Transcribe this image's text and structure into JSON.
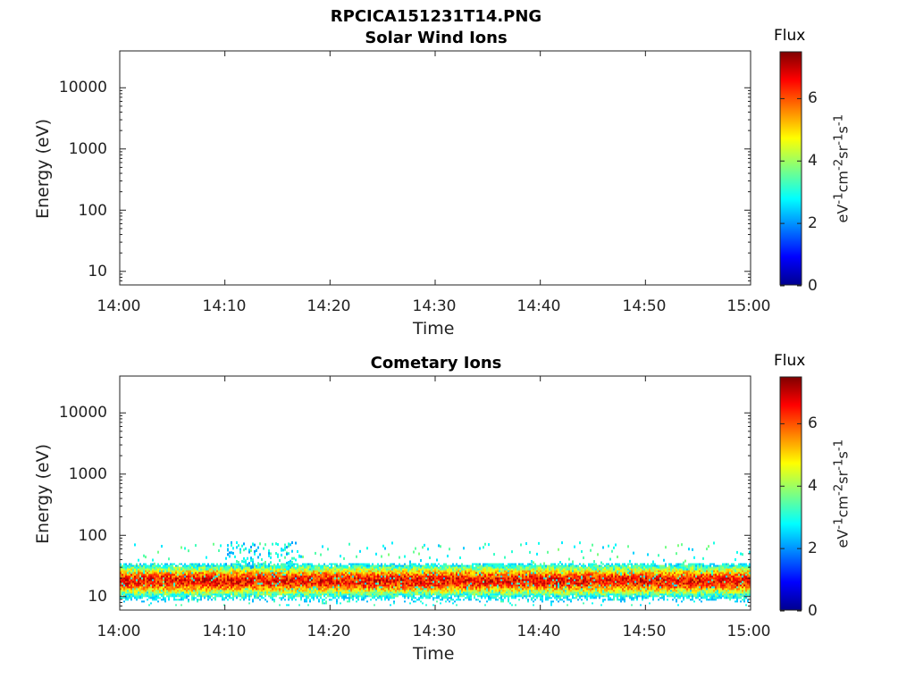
{
  "figure": {
    "title": "RPCICA151231T14.PNG"
  },
  "chart_data": [
    {
      "type": "heatmap",
      "title": "Solar Wind Ions",
      "xlabel": "Time",
      "ylabel": "Energy (eV)",
      "x_ticks": [
        "14:00",
        "14:10",
        "14:20",
        "14:30",
        "14:40",
        "14:50",
        "15:00"
      ],
      "y_ticks": [
        "10",
        "100",
        "1000",
        "10000"
      ],
      "y_scale": "log",
      "xlim": [
        "14:00",
        "15:00"
      ],
      "ylim": [
        6,
        40000
      ],
      "colorbar": {
        "label": "Flux",
        "unit": "eV-1cm-2sr-1s-1",
        "ticks": [
          "0",
          "2",
          "4",
          "6"
        ],
        "range": [
          0,
          7.5
        ]
      },
      "data": []
    },
    {
      "type": "heatmap",
      "title": "Cometary Ions",
      "xlabel": "Time",
      "ylabel": "Energy (eV)",
      "x_ticks": [
        "14:00",
        "14:10",
        "14:20",
        "14:30",
        "14:40",
        "14:50",
        "15:00"
      ],
      "y_ticks": [
        "10",
        "100",
        "1000",
        "10000"
      ],
      "y_scale": "log",
      "xlim": [
        "14:00",
        "15:00"
      ],
      "ylim": [
        6,
        40000
      ],
      "colorbar": {
        "label": "Flux",
        "unit": "eV-1cm-2sr-1s-1",
        "ticks": [
          "0",
          "2",
          "4",
          "6"
        ],
        "range": [
          0,
          7.5
        ]
      },
      "band": {
        "energy_range_eV": [
          8,
          30
        ],
        "peak_energy_eV": 18,
        "peak_flux": 6.5
      },
      "patch": {
        "time_range": [
          "14:10",
          "14:17"
        ],
        "energy_range_eV": [
          30,
          80
        ],
        "flux": 2.5
      }
    }
  ]
}
